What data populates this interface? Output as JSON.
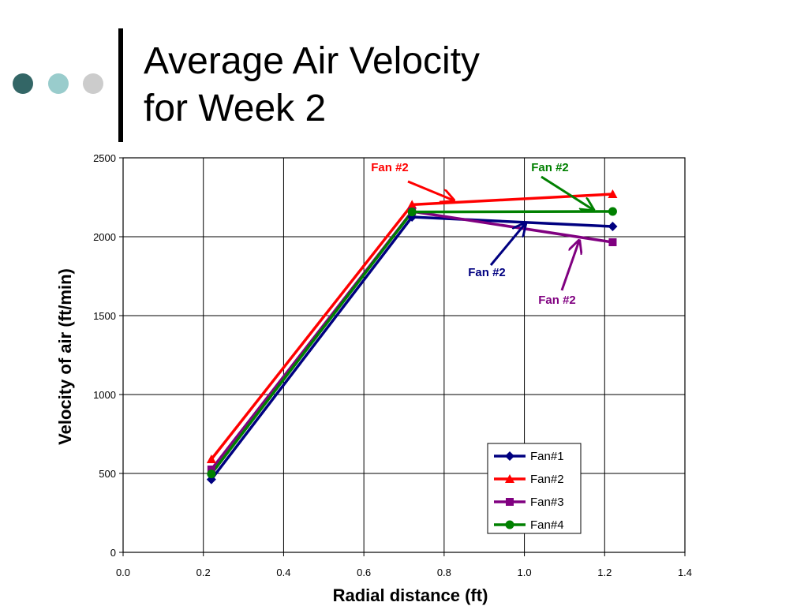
{
  "slide": {
    "title_lines": [
      "Average Air Velocity",
      "for Week 2"
    ],
    "dot_colors": [
      "#336666",
      "#99cccc",
      "#cccccc"
    ]
  },
  "chart_data": {
    "type": "line",
    "title": "",
    "xlabel": "Radial distance (ft)",
    "ylabel": "Velocity of air (ft/min)",
    "xlim": [
      0.0,
      1.4
    ],
    "ylim": [
      0,
      2500
    ],
    "x_ticks": [
      "0.0",
      "0.2",
      "0.4",
      "0.6",
      "0.8",
      "1.0",
      "1.2",
      "1.4"
    ],
    "y_ticks": [
      "0",
      "500",
      "1000",
      "1500",
      "2000",
      "2500"
    ],
    "grid": true,
    "legend_position": "bottom-right",
    "series": [
      {
        "name": "Fan#1",
        "color": "#000080",
        "marker": "diamond",
        "x": [
          0.22,
          0.72,
          1.22
        ],
        "y": [
          462,
          2125,
          2065
        ]
      },
      {
        "name": "Fan#2",
        "color": "#ff0000",
        "marker": "triangle",
        "x": [
          0.22,
          0.72,
          1.22
        ],
        "y": [
          590,
          2203,
          2270
        ]
      },
      {
        "name": "Fan#3",
        "color": "#800080",
        "marker": "square",
        "x": [
          0.22,
          0.72,
          1.22
        ],
        "y": [
          525,
          2160,
          1965
        ]
      },
      {
        "name": "Fan#4",
        "color": "#008000",
        "marker": "circle",
        "x": [
          0.22,
          0.72,
          1.22
        ],
        "y": [
          497,
          2157,
          2160
        ]
      }
    ],
    "annotations": [
      {
        "text": "Fan #2",
        "color": "#ff0000"
      },
      {
        "text": "Fan #2",
        "color": "#008000"
      },
      {
        "text": "Fan #2",
        "color": "#000080"
      },
      {
        "text": "Fan #2",
        "color": "#800080"
      }
    ]
  }
}
